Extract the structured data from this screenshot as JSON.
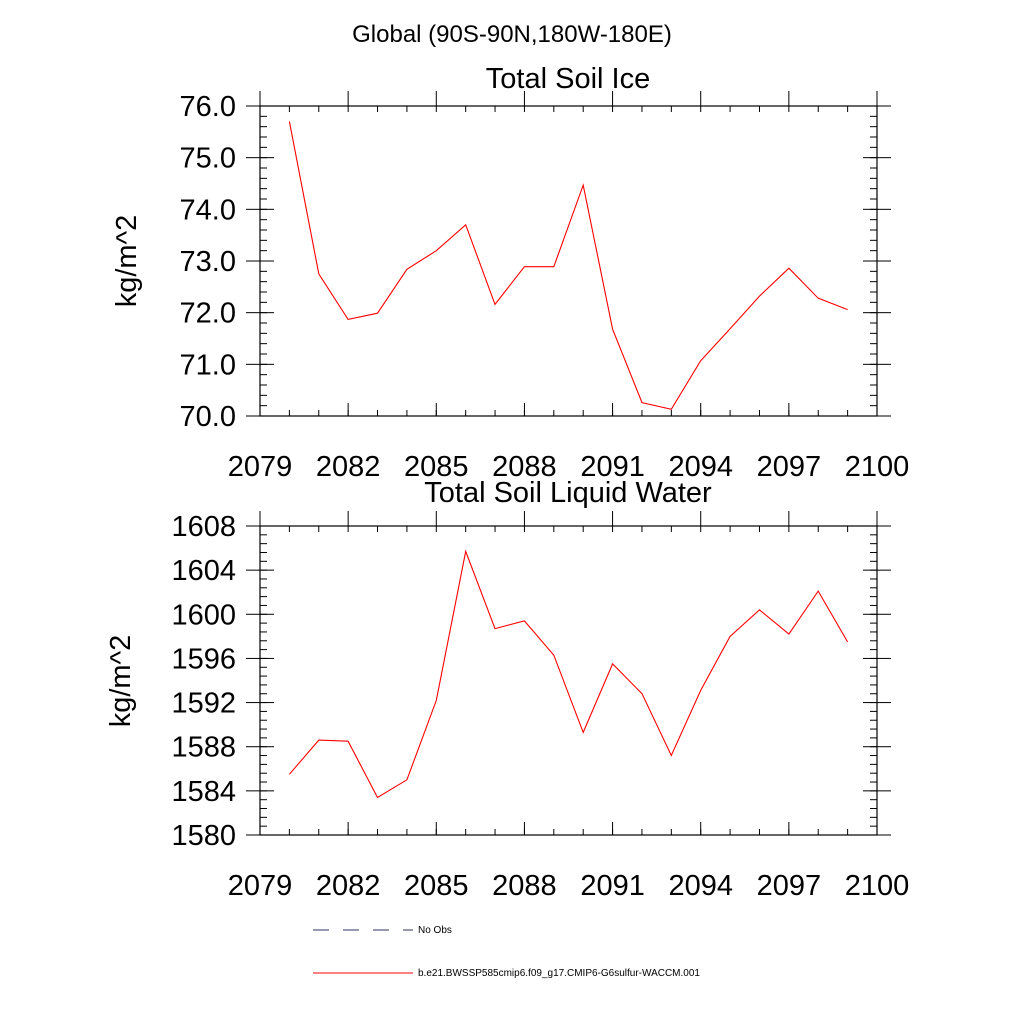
{
  "figure": {
    "title": "Global (90S-90N,180W-180E)"
  },
  "legend": {
    "placement": "bottom",
    "entries": [
      {
        "label": "No Obs",
        "color": "#303060",
        "dash": "dashed"
      },
      {
        "label": "b.e21.BWSSP585cmip6.f09_g17.CMIP6-G6sulfur-WACCM.001",
        "color": "#ff0000",
        "dash": "solid"
      }
    ]
  },
  "chart_data": [
    {
      "type": "line",
      "title": "Total Soil Ice",
      "xlabel": "",
      "ylabel": "kg/m^2",
      "xlim": [
        2079,
        2100
      ],
      "ylim": [
        70.0,
        76.0
      ],
      "xticks": [
        2079,
        2082,
        2085,
        2088,
        2091,
        2094,
        2097,
        2100
      ],
      "xtick_labels": [
        "2079",
        "2082",
        "2085",
        "2088",
        "2091",
        "2094",
        "2097",
        "2100"
      ],
      "yticks": [
        70.0,
        71.0,
        72.0,
        73.0,
        74.0,
        75.0,
        76.0
      ],
      "ytick_labels": [
        "70.0",
        "71.0",
        "72.0",
        "73.0",
        "74.0",
        "75.0",
        "76.0"
      ],
      "grid": false,
      "x": [
        2080,
        2081,
        2082,
        2083,
        2084,
        2085,
        2086,
        2087,
        2088,
        2089,
        2090,
        2091,
        2092,
        2093,
        2094,
        2095,
        2096,
        2097,
        2098,
        2099
      ],
      "series": [
        {
          "color": "#ff0000",
          "values": [
            75.7,
            72.75,
            71.87,
            71.99,
            72.84,
            73.2,
            73.7,
            72.16,
            72.89,
            72.89,
            74.47,
            71.68,
            70.26,
            70.13,
            71.07,
            71.69,
            72.32,
            72.86,
            72.28,
            72.06
          ]
        }
      ]
    },
    {
      "type": "line",
      "title": "Total Soil Liquid Water",
      "xlabel": "",
      "ylabel": "kg/m^2",
      "xlim": [
        2079,
        2100
      ],
      "ylim": [
        1580,
        1608
      ],
      "xticks": [
        2079,
        2082,
        2085,
        2088,
        2091,
        2094,
        2097,
        2100
      ],
      "xtick_labels": [
        "2079",
        "2082",
        "2085",
        "2088",
        "2091",
        "2094",
        "2097",
        "2100"
      ],
      "yticks": [
        1580,
        1584,
        1588,
        1592,
        1596,
        1600,
        1604,
        1608
      ],
      "ytick_labels": [
        "1580",
        "1584",
        "1588",
        "1592",
        "1596",
        "1600",
        "1604",
        "1608"
      ],
      "grid": false,
      "x": [
        2080,
        2081,
        2082,
        2083,
        2084,
        2085,
        2086,
        2087,
        2088,
        2089,
        2090,
        2091,
        2092,
        2093,
        2094,
        2095,
        2096,
        2097,
        2098,
        2099
      ],
      "series": [
        {
          "color": "#ff0000",
          "values": [
            1585.5,
            1588.6,
            1588.5,
            1583.4,
            1585.0,
            1592.2,
            1605.7,
            1598.7,
            1599.4,
            1596.3,
            1589.3,
            1595.5,
            1592.8,
            1587.2,
            1593.1,
            1598.0,
            1600.4,
            1598.2,
            1602.1,
            1597.5
          ]
        }
      ]
    }
  ]
}
